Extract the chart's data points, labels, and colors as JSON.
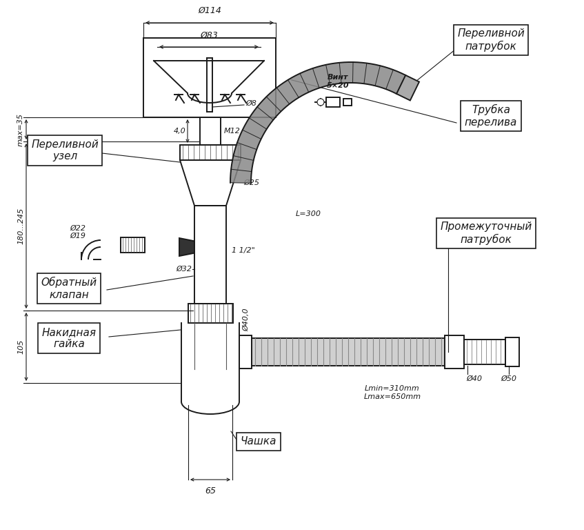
{
  "bg_color": "#ffffff",
  "line_color": "#1a1a1a",
  "labels": {
    "perelivnoy_uzel": "Переливной\nузел",
    "perelivnoy_patrubок": "Переливной\nпатрубок",
    "trubka_pereliva": "Трубка\nперелива",
    "promezh_patrubоk": "Промежуточный\nпатрубок",
    "obratny_klapan": "Обратный\nклапан",
    "nakidnaya_gayka": "Накидная\nгайка",
    "chashka": "Чашка",
    "vint": "Винт\n5×20",
    "dim_114": "Ø114",
    "dim_83": "Ø83",
    "dim_8": "Ø8",
    "dim_25": "Ø25",
    "dim_32": "Ø32",
    "dim_40_vert": "Ø40,0",
    "dim_40": "Ø40",
    "dim_22": "Ø22",
    "dim_19": "Ø19",
    "dim_M12": "M12",
    "dim_40h": "4,0",
    "dim_L300": "L=300",
    "dim_Lmin": "Lmin=310mm",
    "dim_Lmax": "Lmax=650mm",
    "dim_D40": "Ø40",
    "dim_D50": "Ø50",
    "dim_65": "65",
    "dim_105": "105",
    "dim_180_245": "180...245",
    "dim_max35": "max=35",
    "dim_11_2": "1 1/2\""
  }
}
